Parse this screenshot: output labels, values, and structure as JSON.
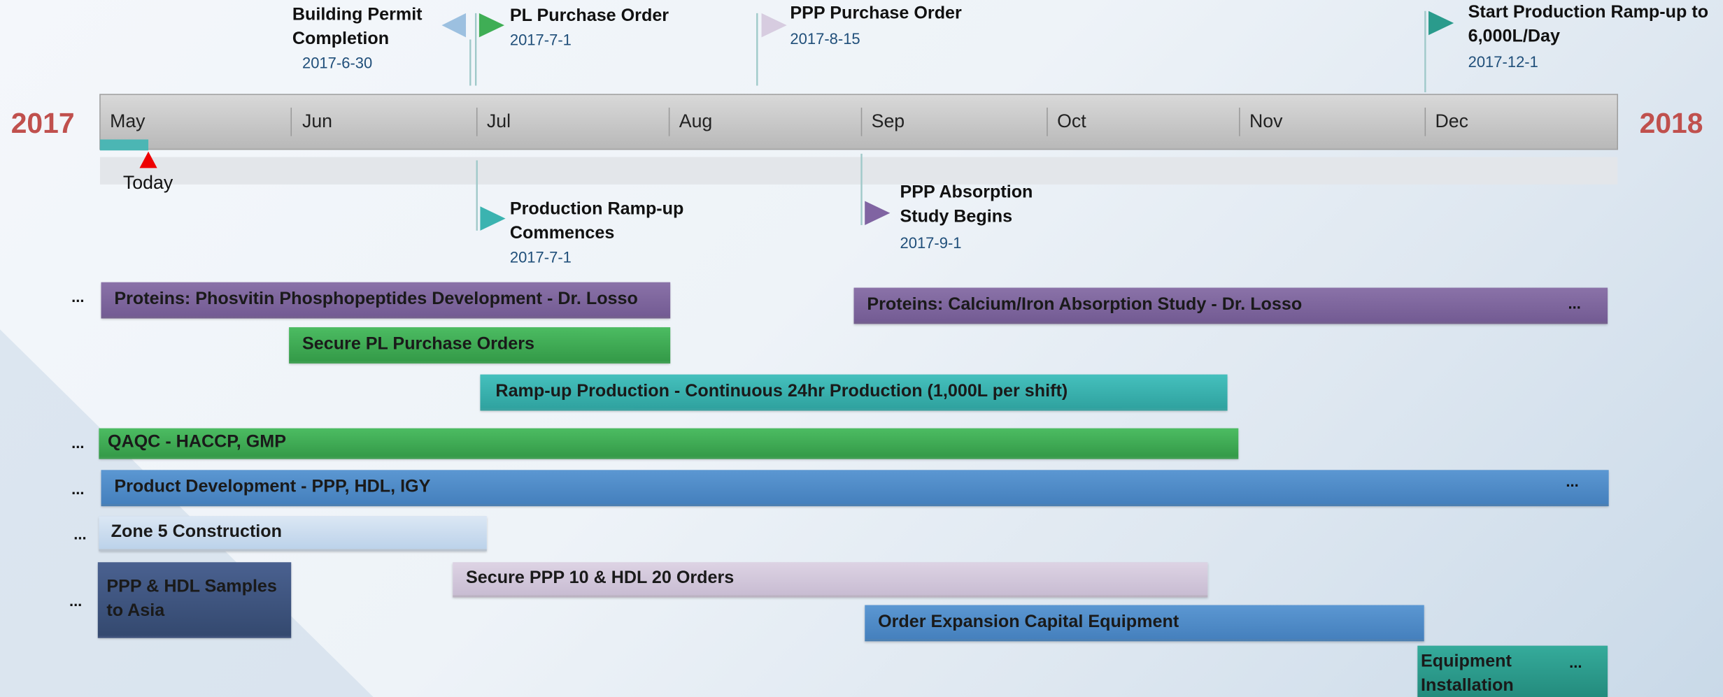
{
  "years": [
    "2017",
    "2018"
  ],
  "months": [
    "May",
    "Jun",
    "Jul",
    "Aug",
    "Sep",
    "Oct",
    "Nov",
    "Dec"
  ],
  "today": "Today",
  "milestones": [
    {
      "title": "Building Permit Completion",
      "date": "2017-6-30"
    },
    {
      "title": "PL Purchase Order",
      "date": "2017-7-1"
    },
    {
      "title": "PPP Purchase Order",
      "date": "2017-8-15"
    },
    {
      "title": "Start Production Ramp-up to 6,000L/Day",
      "date": "2017-12-1"
    },
    {
      "title": "Production Ramp-up Commences",
      "date": "2017-7-1"
    },
    {
      "title": "PPP Absorption Study Begins",
      "date": "2017-9-1"
    }
  ],
  "tasks": [
    "Proteins: Phosvitin Phosphopeptides Development - Dr. Losso",
    "Proteins: Calcium/Iron Absorption Study - Dr. Losso",
    "Secure PL Purchase Orders",
    "Ramp-up Production - Continuous 24hr Production (1,000L per shift)",
    "QAQC - HACCP, GMP",
    "Product Development - PPP, HDL, IGY",
    "Zone 5 Construction",
    "PPP & HDL Samples to Asia",
    "Secure PPP 10 & HDL 20 Orders",
    "Order Expansion Capital Equipment",
    "Equipment Installation"
  ],
  "ellipsis": "..."
}
